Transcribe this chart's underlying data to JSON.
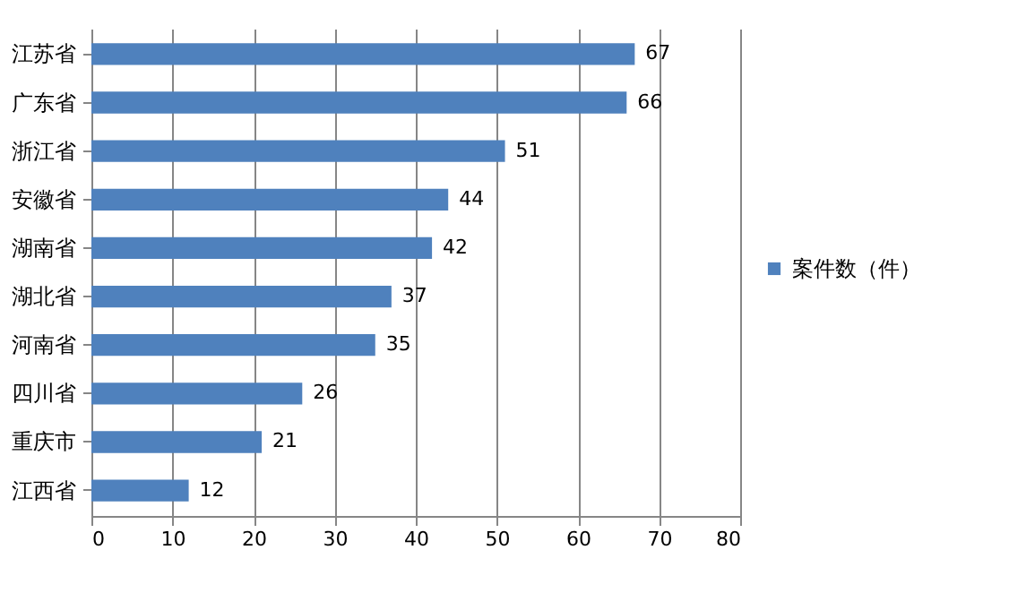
{
  "chart_data": {
    "type": "bar",
    "orientation": "horizontal",
    "categories": [
      "江苏省",
      "广东省",
      "浙江省",
      "安徽省",
      "湖南省",
      "湖北省",
      "河南省",
      "四川省",
      "重庆市",
      "江西省"
    ],
    "series": [
      {
        "name": "案件数（件）",
        "color": "#4f81bd",
        "values": [
          67,
          66,
          51,
          44,
          42,
          37,
          35,
          26,
          21,
          12
        ]
      }
    ],
    "xlim": [
      0,
      80
    ],
    "xticks": [
      0,
      10,
      20,
      30,
      40,
      50,
      60,
      70,
      80
    ],
    "grid": "x",
    "legend": "right",
    "data_labels": true
  }
}
